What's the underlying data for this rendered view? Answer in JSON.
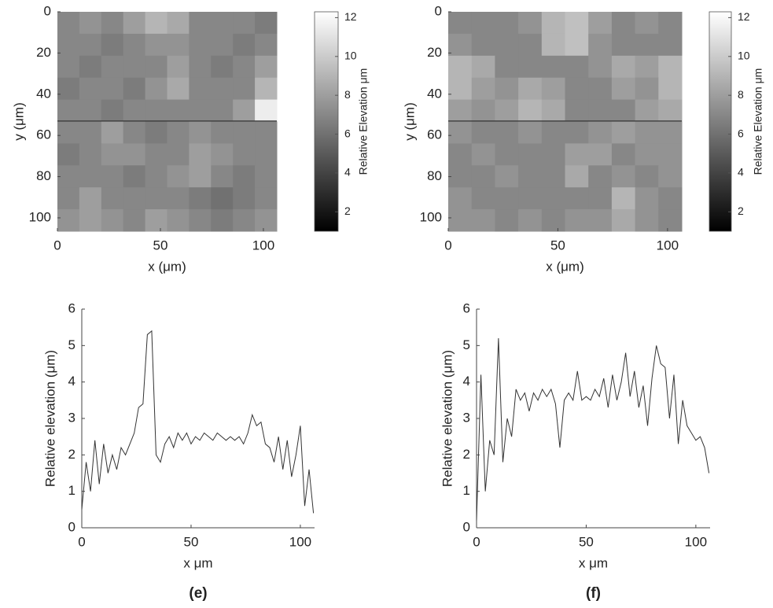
{
  "chart_data": [
    {
      "type": "heatmap",
      "xlabel": "x (μm)",
      "ylabel": "y (μm)",
      "colorbar_label": "Relative Elevation μm",
      "colormap": "gray",
      "xlim": [
        0,
        106.5
      ],
      "ylim": [
        106.5,
        0
      ],
      "xticks": [
        0,
        50,
        100
      ],
      "yticks": [
        0,
        20,
        40,
        60,
        80,
        100
      ],
      "clim": [
        1,
        12.3
      ],
      "cticks": [
        2,
        4,
        6,
        8,
        10,
        12
      ],
      "profile_y": 53,
      "z": [
        [
          7,
          7.5,
          7,
          8,
          9,
          8.5,
          7,
          7,
          7,
          6.5
        ],
        [
          7,
          7,
          6.5,
          7,
          7.5,
          7.5,
          7,
          7,
          6.5,
          7
        ],
        [
          7,
          6.5,
          7,
          7,
          7,
          8,
          7,
          6.5,
          7,
          8
        ],
        [
          6.5,
          7,
          7,
          6.5,
          7.5,
          8.5,
          7,
          7,
          7,
          9
        ],
        [
          7,
          7,
          6.5,
          7,
          7,
          7,
          7,
          7,
          8,
          11.5
        ],
        [
          7,
          7,
          8,
          7,
          6.5,
          7,
          7.5,
          7,
          7,
          7
        ],
        [
          6.5,
          7,
          7.5,
          7.5,
          7,
          7,
          8,
          7.5,
          7,
          7
        ],
        [
          7,
          7,
          7,
          6.5,
          7,
          7.5,
          8,
          7,
          6.5,
          7
        ],
        [
          7,
          8,
          7,
          7,
          7,
          7,
          6.5,
          6,
          6.5,
          7
        ],
        [
          7.5,
          8,
          7.5,
          7,
          8,
          7.5,
          7,
          6.5,
          7,
          7.5
        ]
      ]
    },
    {
      "type": "heatmap",
      "xlabel": "x (μm)",
      "ylabel": "y (μm)",
      "colorbar_label": "Relative Elevation μm",
      "colormap": "gray",
      "xlim": [
        0,
        106.5
      ],
      "ylim": [
        106.5,
        0
      ],
      "xticks": [
        0,
        50,
        100
      ],
      "yticks": [
        0,
        20,
        40,
        60,
        80,
        100
      ],
      "clim": [
        1,
        12.3
      ],
      "cticks": [
        2,
        4,
        6,
        8,
        10,
        12
      ],
      "profile_y": 53,
      "z": [
        [
          7,
          7,
          7,
          7.5,
          9,
          9.5,
          8,
          7,
          7.5,
          7
        ],
        [
          7.5,
          7,
          7,
          7,
          9,
          9.5,
          7.5,
          7,
          7,
          7
        ],
        [
          9,
          8.5,
          7,
          7,
          7,
          7,
          7.5,
          8.5,
          8,
          9
        ],
        [
          9,
          8,
          7.5,
          8.5,
          8,
          7,
          7,
          8,
          7.5,
          9
        ],
        [
          8,
          7.5,
          8,
          9,
          8.5,
          7,
          7,
          7,
          8,
          8.5
        ],
        [
          7.5,
          7,
          7,
          7.5,
          7,
          7,
          7.5,
          8,
          7.5,
          7.5
        ],
        [
          7,
          7.5,
          7,
          7,
          7,
          8,
          8,
          7,
          7.5,
          7.5
        ],
        [
          7,
          7,
          7.5,
          7,
          7,
          8.5,
          7,
          7.5,
          7,
          7.5
        ],
        [
          7.5,
          7,
          7,
          7,
          7,
          7,
          7,
          9,
          7.5,
          7
        ],
        [
          7.5,
          7.5,
          7,
          7.5,
          7,
          7.5,
          7.5,
          8.5,
          7.5,
          7
        ]
      ]
    },
    {
      "type": "line",
      "xlabel": "x μm",
      "ylabel": "Relative elevation (μm)",
      "panel_label": "(e)",
      "color": "#333333",
      "xlim": [
        0,
        106.5
      ],
      "ylim": [
        0,
        6
      ],
      "xticks": [
        0,
        50,
        100
      ],
      "yticks": [
        0,
        1,
        2,
        3,
        4,
        5,
        6
      ],
      "x": [
        0,
        2,
        4,
        6,
        8,
        10,
        12,
        14,
        16,
        18,
        20,
        22,
        24,
        26,
        28,
        30,
        32,
        34,
        36,
        38,
        40,
        42,
        44,
        46,
        48,
        50,
        52,
        54,
        56,
        58,
        60,
        62,
        64,
        66,
        68,
        70,
        72,
        74,
        76,
        78,
        80,
        82,
        84,
        86,
        88,
        90,
        92,
        94,
        96,
        98,
        100,
        102,
        104,
        106
      ],
      "values": [
        0.5,
        1.8,
        1.0,
        2.4,
        1.2,
        2.3,
        1.5,
        2.0,
        1.6,
        2.2,
        2.0,
        2.3,
        2.6,
        3.3,
        3.4,
        5.3,
        5.4,
        2.0,
        1.8,
        2.3,
        2.5,
        2.2,
        2.6,
        2.4,
        2.6,
        2.3,
        2.5,
        2.4,
        2.6,
        2.5,
        2.4,
        2.6,
        2.5,
        2.4,
        2.5,
        2.4,
        2.5,
        2.3,
        2.6,
        3.1,
        2.8,
        2.9,
        2.3,
        2.2,
        1.8,
        2.5,
        1.6,
        2.4,
        1.4,
        2.0,
        2.8,
        0.6,
        1.6,
        0.4
      ]
    },
    {
      "type": "line",
      "xlabel": "x μm",
      "ylabel": "Relative elevation (μm)",
      "panel_label": "(f)",
      "color": "#333333",
      "xlim": [
        0,
        106.5
      ],
      "ylim": [
        0,
        6
      ],
      "xticks": [
        0,
        50,
        100
      ],
      "yticks": [
        0,
        1,
        2,
        3,
        4,
        5,
        6
      ],
      "x": [
        0,
        2,
        4,
        6,
        8,
        10,
        12,
        14,
        16,
        18,
        20,
        22,
        24,
        26,
        28,
        30,
        32,
        34,
        36,
        38,
        40,
        42,
        44,
        46,
        48,
        50,
        52,
        54,
        56,
        58,
        60,
        62,
        64,
        66,
        68,
        70,
        72,
        74,
        76,
        78,
        80,
        82,
        84,
        86,
        88,
        90,
        92,
        94,
        96,
        98,
        100,
        102,
        104,
        106
      ],
      "values": [
        0.2,
        4.2,
        1.0,
        2.4,
        2.0,
        5.2,
        1.8,
        3.0,
        2.5,
        3.8,
        3.5,
        3.7,
        3.2,
        3.7,
        3.5,
        3.8,
        3.6,
        3.8,
        3.4,
        2.2,
        3.5,
        3.7,
        3.5,
        4.3,
        3.5,
        3.6,
        3.5,
        3.8,
        3.6,
        4.1,
        3.3,
        4.2,
        3.5,
        4.0,
        4.8,
        3.6,
        4.3,
        3.3,
        3.9,
        2.8,
        4.1,
        5.0,
        4.5,
        4.4,
        3.0,
        4.2,
        2.3,
        3.5,
        2.8,
        2.6,
        2.4,
        2.5,
        2.2,
        1.5
      ]
    }
  ]
}
